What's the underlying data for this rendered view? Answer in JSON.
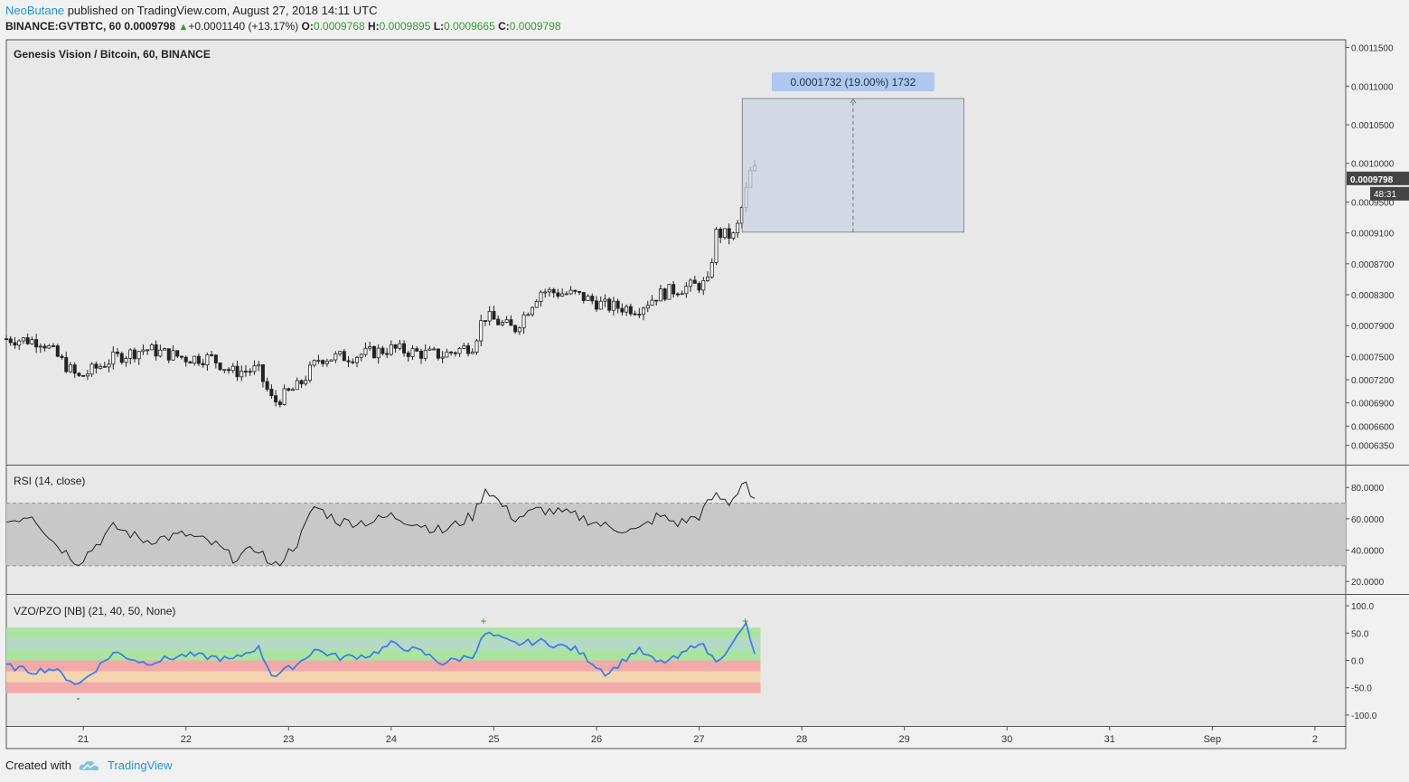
{
  "header": {
    "author": "NeoButane",
    "published_text": "published on TradingView.com, August 27, 2018 14:11 UTC",
    "symbol": "BINANCE:GVTBTC, 60",
    "last": "0.0009798",
    "change": "+0.0001140 (+13.17%)",
    "o_label": "O:",
    "o": "0.0009768",
    "h_label": "H:",
    "h": "0.0009895",
    "l_label": "L:",
    "l": "0.0009665",
    "c_label": "C:",
    "c": "0.0009798"
  },
  "footer": {
    "created_with": "Created with",
    "brand": "TradingView"
  },
  "colors": {
    "bg": "#e8e8e8",
    "axis_bg": "#f1f1f1",
    "candle": "#222222",
    "rsi_band": "#c8c8c8",
    "vzo_line": "#3f7fe8",
    "measure_box": "#c9d4e6",
    "measure_label": "#aec8ef"
  },
  "chart_data": [
    {
      "type": "candlestick",
      "title": "Genesis Vision / Bitcoin, 60, BINANCE",
      "ylim": [
        0.00061,
        0.00116
      ],
      "y_ticks": [
        "0.0011500",
        "0.0011000",
        "0.0010500",
        "0.0010000",
        "0.0009500",
        "0.0009100",
        "0.0008700",
        "0.0008300",
        "0.0007900",
        "0.0007500",
        "0.0007200",
        "0.0006900",
        "0.0006600",
        "0.0006350"
      ],
      "y_tick_values": [
        0.00115,
        0.0011,
        0.00105,
        0.001,
        0.00095,
        0.00091,
        0.00087,
        0.00083,
        0.00079,
        0.00075,
        0.00072,
        0.00069,
        0.00066,
        0.000635
      ],
      "x_ticks": [
        "21",
        "22",
        "23",
        "24",
        "25",
        "26",
        "27",
        "28",
        "29",
        "30",
        "31",
        "Sep",
        "2"
      ],
      "x_start_day": 20.25,
      "x_end_day": 33.3,
      "last_bar_day": 27.58,
      "price_control_points": [
        [
          20.25,
          0.000773
        ],
        [
          20.6,
          0.00077
        ],
        [
          20.95,
          0.000722
        ],
        [
          21.3,
          0.000748
        ],
        [
          21.6,
          0.00076
        ],
        [
          22.0,
          0.000748
        ],
        [
          22.25,
          0.000748
        ],
        [
          22.45,
          0.00073
        ],
        [
          22.7,
          0.000733
        ],
        [
          22.85,
          0.00069
        ],
        [
          23.1,
          0.000712
        ],
        [
          23.3,
          0.000748
        ],
        [
          23.6,
          0.00075
        ],
        [
          24.0,
          0.00076
        ],
        [
          24.3,
          0.000754
        ],
        [
          24.5,
          0.000752
        ],
        [
          24.8,
          0.000765
        ],
        [
          24.9,
          0.000803
        ],
        [
          25.2,
          0.000785
        ],
        [
          25.45,
          0.000835
        ],
        [
          25.8,
          0.00083
        ],
        [
          26.1,
          0.000815
        ],
        [
          26.4,
          0.000812
        ],
        [
          26.6,
          0.00083
        ],
        [
          26.8,
          0.000838
        ],
        [
          27.1,
          0.000845
        ],
        [
          27.15,
          0.00091
        ],
        [
          27.35,
          0.000905
        ],
        [
          27.45,
          0.00096
        ],
        [
          27.52,
          0.000998
        ],
        [
          27.58,
          0.00098
        ]
      ],
      "last_price_label": "0.0009798",
      "countdown_label": "48:31",
      "measure": {
        "label": "0.0001732 (19.00%) 1732",
        "from_day": 27.42,
        "to_day": 29.58,
        "low": 0.000911,
        "high": 0.001084
      }
    },
    {
      "type": "line",
      "title": "RSI (14, close)",
      "ylim": [
        12,
        94
      ],
      "y_ticks": [
        "80.0000",
        "60.0000",
        "40.0000",
        "20.0000"
      ],
      "y_tick_values": [
        80,
        60,
        40,
        20
      ],
      "band": [
        30,
        70
      ],
      "control_points": [
        [
          20.25,
          58
        ],
        [
          20.5,
          63
        ],
        [
          20.7,
          46
        ],
        [
          20.95,
          32
        ],
        [
          21.3,
          55
        ],
        [
          21.6,
          46
        ],
        [
          22.0,
          50
        ],
        [
          22.3,
          43
        ],
        [
          22.45,
          35
        ],
        [
          22.6,
          38
        ],
        [
          22.7,
          42
        ],
        [
          22.85,
          28
        ],
        [
          23.1,
          46
        ],
        [
          23.25,
          68
        ],
        [
          23.5,
          58
        ],
        [
          23.8,
          58
        ],
        [
          24.0,
          62
        ],
        [
          24.3,
          56
        ],
        [
          24.5,
          52
        ],
        [
          24.8,
          62
        ],
        [
          24.92,
          80
        ],
        [
          25.2,
          60
        ],
        [
          25.45,
          66
        ],
        [
          25.8,
          62
        ],
        [
          26.1,
          55
        ],
        [
          26.4,
          52
        ],
        [
          26.6,
          62
        ],
        [
          26.8,
          57
        ],
        [
          27.0,
          62
        ],
        [
          27.15,
          75
        ],
        [
          27.3,
          70
        ],
        [
          27.45,
          86
        ],
        [
          27.52,
          70
        ],
        [
          27.58,
          70
        ]
      ]
    },
    {
      "type": "line",
      "title": "VZO/PZO [NB] (21, 40, 50, None)",
      "ylim": [
        -120,
        120
      ],
      "y_ticks": [
        "100.0",
        "50.0",
        "0.0",
        "-50.0",
        "-100.0"
      ],
      "y_tick_values": [
        100,
        50,
        0,
        -50,
        -100
      ],
      "zones": [
        [
          40,
          60,
          "#a9e5a0"
        ],
        [
          20,
          40,
          "#b6d8c7"
        ],
        [
          0,
          20,
          "#a9e5a0"
        ],
        [
          -20,
          0,
          "#f2aaa8"
        ],
        [
          -40,
          -20,
          "#f5d5b0"
        ],
        [
          -60,
          -40,
          "#f2aaa8"
        ]
      ],
      "markers": [
        {
          "day": 20.95,
          "symbol": "-"
        },
        {
          "day": 24.9,
          "symbol": "+"
        },
        {
          "day": 27.45,
          "symbol": "+"
        }
      ],
      "control_points": [
        [
          20.25,
          -10
        ],
        [
          20.5,
          -20
        ],
        [
          20.7,
          -15
        ],
        [
          20.95,
          -45
        ],
        [
          21.3,
          15
        ],
        [
          21.6,
          -5
        ],
        [
          22.0,
          10
        ],
        [
          22.3,
          5
        ],
        [
          22.45,
          0
        ],
        [
          22.6,
          15
        ],
        [
          22.7,
          25
        ],
        [
          22.85,
          -30
        ],
        [
          23.1,
          -5
        ],
        [
          23.25,
          20
        ],
        [
          23.5,
          5
        ],
        [
          23.8,
          10
        ],
        [
          24.0,
          30
        ],
        [
          24.3,
          15
        ],
        [
          24.5,
          -5
        ],
        [
          24.8,
          10
        ],
        [
          24.92,
          50
        ],
        [
          25.2,
          30
        ],
        [
          25.45,
          35
        ],
        [
          25.8,
          20
        ],
        [
          26.1,
          -25
        ],
        [
          26.4,
          20
        ],
        [
          26.6,
          -5
        ],
        [
          26.8,
          5
        ],
        [
          27.0,
          35
        ],
        [
          27.15,
          0
        ],
        [
          27.3,
          20
        ],
        [
          27.45,
          70
        ],
        [
          27.52,
          20
        ],
        [
          27.58,
          5
        ]
      ]
    }
  ]
}
